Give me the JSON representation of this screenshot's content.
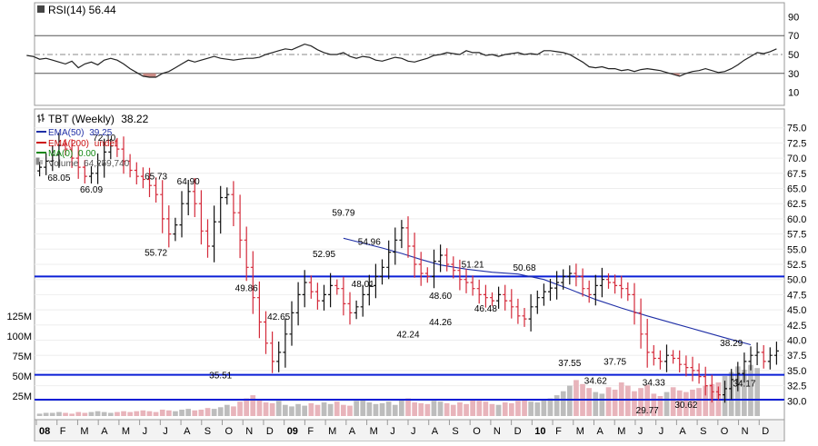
{
  "chart_data": [
    {
      "type": "line",
      "indicator_label": "RSI(14) 56.44",
      "y_ticks": [
        90,
        70,
        50,
        30,
        10
      ],
      "ylim": [
        0,
        100
      ],
      "overbought": 70,
      "midline": 50,
      "oversold": 30,
      "series": [
        {
          "values": [
            49,
            48,
            45,
            46,
            44,
            42,
            40,
            43,
            36,
            40,
            42,
            39,
            44,
            46,
            44,
            40,
            35,
            31,
            27,
            26,
            26,
            30,
            32,
            36,
            40,
            44,
            42,
            44,
            46,
            48,
            46,
            45,
            44,
            45,
            46,
            46,
            47,
            50,
            52,
            54,
            56,
            55,
            58,
            61,
            59,
            55,
            52,
            50,
            50,
            52,
            48,
            46,
            48,
            47,
            44,
            43,
            45,
            47,
            46,
            43,
            42,
            44,
            46,
            49,
            50,
            52,
            51,
            50,
            54,
            52,
            52,
            49,
            50,
            48,
            50,
            51,
            52,
            50,
            51,
            50,
            54,
            54,
            53,
            52,
            50,
            46,
            42,
            37,
            36,
            37,
            35,
            35,
            33,
            34,
            32,
            34,
            35,
            34,
            33,
            31,
            29,
            27,
            30,
            32,
            33,
            35,
            33,
            31,
            32,
            35,
            39,
            44,
            48,
            52,
            51,
            53,
            56
          ]
        }
      ]
    },
    {
      "type": "bar",
      "title": "TBT (Weekly)",
      "last_price": "38.22",
      "legend": [
        {
          "label": "EMA(50)",
          "value": "39.25",
          "color": "#1f2fa6"
        },
        {
          "label": "EMA(200)",
          "value": "undef",
          "color": "#cc1111"
        },
        {
          "label": "MA(0)",
          "value": "0.00",
          "color": "#118811"
        },
        {
          "label": "Volume",
          "value": "64,259,740",
          "color": "#888888"
        }
      ],
      "price_ticks": [
        "75.0",
        "72.5",
        "70.0",
        "67.5",
        "65.0",
        "62.5",
        "60.0",
        "57.5",
        "55.0",
        "52.5",
        "50.0",
        "47.5",
        "45.0",
        "42.5",
        "40.0",
        "37.5",
        "35.0",
        "32.5",
        "30.0"
      ],
      "price_ticks_num": [
        75,
        72.5,
        70,
        67.5,
        65,
        62.5,
        60,
        57.5,
        55,
        52.5,
        50,
        47.5,
        45,
        42.5,
        40,
        37.5,
        35,
        32.5,
        30
      ],
      "ylim": [
        27.5,
        77.5
      ],
      "volume_ticks": [
        "125M",
        "100M",
        "75M",
        "50M",
        "25M"
      ],
      "volume_ticks_num": [
        125,
        100,
        75,
        50,
        25
      ],
      "volume_unit": "M",
      "x_labels": [
        "08",
        "F",
        "M",
        "A",
        "M",
        "J",
        "J",
        "A",
        "S",
        "O",
        "N",
        "D",
        "09",
        "F",
        "M",
        "A",
        "M",
        "J",
        "J",
        "A",
        "S",
        "O",
        "N",
        "D",
        "10",
        "F",
        "M",
        "A",
        "M",
        "J",
        "J",
        "A",
        "S",
        "O",
        "N",
        "D"
      ],
      "x_labels_bold": [
        "08",
        "09",
        "10"
      ],
      "horizontal_levels": [
        50.5,
        34.3,
        30.2
      ],
      "annotations": [
        {
          "text": "68.05",
          "week": 3,
          "price": 68.05
        },
        {
          "text": "72.10",
          "week": 10,
          "price": 72.1
        },
        {
          "text": "66.09",
          "week": 8,
          "price": 66.09
        },
        {
          "text": "65.73",
          "week": 18,
          "price": 65.73
        },
        {
          "text": "64.90",
          "week": 23,
          "price": 64.9
        },
        {
          "text": "55.72",
          "week": 18,
          "price": 55.72
        },
        {
          "text": "35.51",
          "week": 28,
          "price": 35.51
        },
        {
          "text": "49.86",
          "week": 32,
          "price": 49.86
        },
        {
          "text": "42.65",
          "week": 37,
          "price": 42.65
        },
        {
          "text": "52.95",
          "week": 44,
          "price": 52.95
        },
        {
          "text": "59.79",
          "week": 47,
          "price": 59.79
        },
        {
          "text": "54.96",
          "week": 51,
          "price": 54.96
        },
        {
          "text": "48.01",
          "week": 50,
          "price": 48.01
        },
        {
          "text": "42.24",
          "week": 57,
          "price": 42.24
        },
        {
          "text": "44.26",
          "week": 62,
          "price": 44.26
        },
        {
          "text": "48.60",
          "week": 62,
          "price": 48.6
        },
        {
          "text": "51.21",
          "week": 67,
          "price": 51.21
        },
        {
          "text": "46.48",
          "week": 69,
          "price": 46.48
        },
        {
          "text": "50.68",
          "week": 75,
          "price": 50.68
        },
        {
          "text": "37.55",
          "week": 82,
          "price": 37.55
        },
        {
          "text": "37.75",
          "week": 89,
          "price": 37.75
        },
        {
          "text": "34.62",
          "week": 86,
          "price": 34.62
        },
        {
          "text": "34.33",
          "week": 95,
          "price": 34.33
        },
        {
          "text": "29.77",
          "week": 94,
          "price": 29.77
        },
        {
          "text": "30.62",
          "week": 100,
          "price": 30.62
        },
        {
          "text": "38.29",
          "week": 107,
          "price": 38.29
        },
        {
          "text": "34.17",
          "week": 109,
          "price": 34.17
        }
      ],
      "ema50": [
        {
          "week": 47,
          "price": 56.8
        },
        {
          "week": 50,
          "price": 56.0
        },
        {
          "week": 53,
          "price": 55.2
        },
        {
          "week": 56,
          "price": 54.3
        },
        {
          "week": 59,
          "price": 53.3
        },
        {
          "week": 62,
          "price": 52.4
        },
        {
          "week": 66,
          "price": 51.7
        },
        {
          "week": 70,
          "price": 51.2
        },
        {
          "week": 74,
          "price": 50.9
        },
        {
          "week": 78,
          "price": 50.0
        },
        {
          "week": 82,
          "price": 48.4
        },
        {
          "week": 86,
          "price": 46.7
        },
        {
          "week": 90,
          "price": 45.3
        },
        {
          "week": 94,
          "price": 44.0
        },
        {
          "week": 98,
          "price": 42.8
        },
        {
          "week": 102,
          "price": 41.6
        },
        {
          "week": 106,
          "price": 40.4
        },
        {
          "week": 110,
          "price": 39.25
        }
      ],
      "closes": [
        68.5,
        69.5,
        70.5,
        72.1,
        71.5,
        70.0,
        68.5,
        67.0,
        67.5,
        69.0,
        71.0,
        72.0,
        71.5,
        69.5,
        68.0,
        67.0,
        66.5,
        65.5,
        64.0,
        60.0,
        57.5,
        59.0,
        62.5,
        64.5,
        62.5,
        58.0,
        55.5,
        59.5,
        63.5,
        64.0,
        61.0,
        56.5,
        52.0,
        47.0,
        43.0,
        39.5,
        36.5,
        38.0,
        41.0,
        44.5,
        47.5,
        49.5,
        48.0,
        46.5,
        47.5,
        49.0,
        48.5,
        46.0,
        44.5,
        45.5,
        47.5,
        49.0,
        50.5,
        52.0,
        54.5,
        56.5,
        58.5,
        55.5,
        52.5,
        51.0,
        50.5,
        53.0,
        54.0,
        52.5,
        51.5,
        50.0,
        49.5,
        48.5,
        47.5,
        47.0,
        46.5,
        47.5,
        46.5,
        45.5,
        44.0,
        43.5,
        45.5,
        47.0,
        48.0,
        48.6,
        49.5,
        50.5,
        51.0,
        50.5,
        48.5,
        47.5,
        49.0,
        50.0,
        49.5,
        49.0,
        48.5,
        47.5,
        44.5,
        41.0,
        38.0,
        37.0,
        36.5,
        37.5,
        37.0,
        36.0,
        35.5,
        35.0,
        34.0,
        32.5,
        31.5,
        31.0,
        32.0,
        33.5,
        34.5,
        36.5,
        37.5,
        38.0,
        36.5,
        37.5,
        38.22
      ],
      "volumes": [
        3,
        4,
        4,
        5,
        4,
        3,
        5,
        4,
        5,
        6,
        5,
        4,
        5,
        6,
        5,
        6,
        7,
        6,
        5,
        8,
        7,
        6,
        8,
        9,
        7,
        8,
        10,
        9,
        11,
        14,
        12,
        18,
        22,
        26,
        20,
        17,
        16,
        19,
        14,
        12,
        15,
        13,
        16,
        14,
        17,
        15,
        18,
        14,
        13,
        19,
        21,
        17,
        15,
        16,
        18,
        14,
        20,
        22,
        17,
        16,
        15,
        19,
        18,
        16,
        14,
        17,
        15,
        20,
        19,
        18,
        15,
        14,
        17,
        16,
        19,
        21,
        18,
        17,
        20,
        22,
        26,
        31,
        38,
        45,
        40,
        35,
        30,
        28,
        36,
        33,
        42,
        38,
        31,
        35,
        39,
        28,
        25,
        30,
        36,
        32,
        30,
        33,
        35,
        38,
        40,
        42,
        50,
        55,
        62,
        58,
        64,
        60
      ]
    }
  ]
}
